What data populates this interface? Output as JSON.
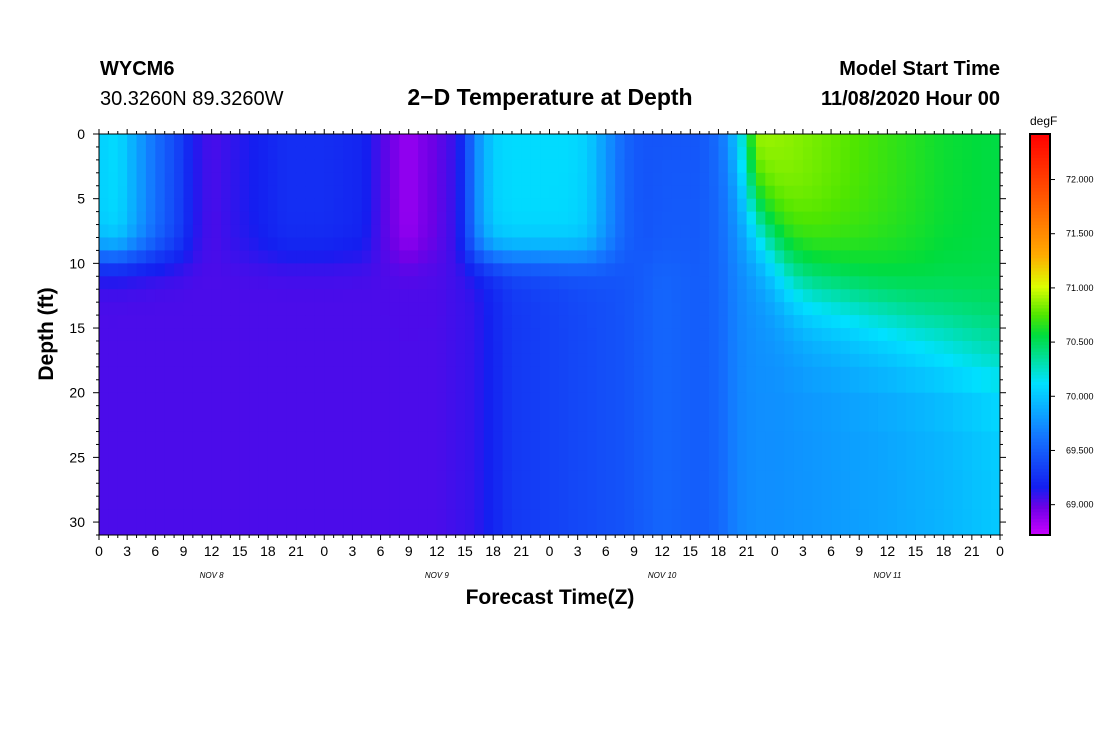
{
  "chart_data": {
    "type": "heatmap",
    "station": "WYCM6",
    "location": "30.3260N 89.3260W",
    "title": "2−D Temperature at Depth",
    "start_time_label": "Model Start Time",
    "start_time": "11/08/2020 Hour 00",
    "xlabel": "Forecast Time(Z)",
    "ylabel": "Depth (ft)",
    "x_range_hours": [
      0,
      96
    ],
    "x_tick_step_hours": 3,
    "x_tick_labels": [
      "0",
      "3",
      "6",
      "9",
      "12",
      "15",
      "18",
      "21",
      "0",
      "3",
      "6",
      "9",
      "12",
      "15",
      "18",
      "21",
      "0",
      "3",
      "6",
      "9",
      "12",
      "15",
      "18",
      "21",
      "0",
      "3",
      "6",
      "9",
      "12",
      "15",
      "18",
      "21",
      "0"
    ],
    "day_labels": [
      {
        "label": "NOV 8",
        "hour": 12
      },
      {
        "label": "NOV 9",
        "hour": 36
      },
      {
        "label": "NOV 10",
        "hour": 60
      },
      {
        "label": "NOV 11",
        "hour": 84
      }
    ],
    "y_range_ft": [
      0,
      31
    ],
    "y_ticks": [
      0,
      5,
      10,
      15,
      20,
      25,
      30
    ],
    "colorbar": {
      "unit": "degF",
      "min": 68.72,
      "max": 72.42,
      "ticks": [
        "72.000",
        "71.500",
        "71.000",
        "70.500",
        "70.000",
        "69.500",
        "69.000"
      ]
    },
    "depth_levels_ft": [
      0,
      1,
      2,
      3,
      4,
      5,
      6,
      7,
      8,
      9,
      10,
      11,
      12,
      13,
      14,
      15,
      16,
      17,
      18,
      20,
      23,
      26,
      29,
      31
    ],
    "surface_temperature_series": {
      "hours": [
        0,
        2,
        4,
        6,
        8,
        9,
        10,
        12,
        14,
        16,
        18,
        20,
        24,
        28,
        30,
        32,
        33,
        34,
        36,
        38,
        39,
        40,
        42,
        44,
        48,
        50,
        52,
        54,
        56,
        58,
        60,
        62,
        64,
        66,
        68,
        69,
        70,
        72,
        78,
        84,
        90,
        96
      ],
      "values": [
        70.05,
        70.1,
        69.85,
        69.6,
        69.4,
        69.3,
        69.15,
        69.05,
        69.1,
        69.15,
        69.2,
        69.25,
        69.25,
        69.2,
        69.05,
        68.92,
        68.85,
        68.92,
        69.0,
        69.1,
        69.3,
        69.7,
        70.05,
        70.1,
        70.1,
        70.1,
        70.05,
        69.8,
        69.55,
        69.45,
        69.45,
        69.45,
        69.45,
        69.6,
        70.05,
        70.5,
        70.95,
        70.9,
        70.8,
        70.7,
        70.6,
        70.55
      ]
    },
    "bottom_temperature_series": {
      "hours": [
        0,
        6,
        12,
        18,
        24,
        30,
        36,
        40,
        44,
        48,
        52,
        56,
        60,
        64,
        66,
        68,
        70,
        72,
        78,
        84,
        90,
        96
      ],
      "values": [
        69.05,
        69.05,
        69.05,
        69.05,
        69.05,
        69.05,
        69.05,
        69.1,
        69.3,
        69.35,
        69.4,
        69.45,
        69.55,
        69.5,
        69.55,
        69.7,
        69.75,
        69.75,
        69.8,
        69.85,
        69.92,
        70.02
      ]
    },
    "thermocline_depth_ft": {
      "hours": [
        66,
        68,
        70,
        72,
        74,
        76,
        78,
        80,
        82,
        84,
        86,
        88,
        90,
        92,
        94,
        96
      ],
      "values": [
        1,
        4,
        6,
        9,
        11,
        12,
        12.5,
        13,
        13.5,
        14,
        14.5,
        15,
        15.5,
        16,
        16.5,
        17
      ]
    }
  }
}
